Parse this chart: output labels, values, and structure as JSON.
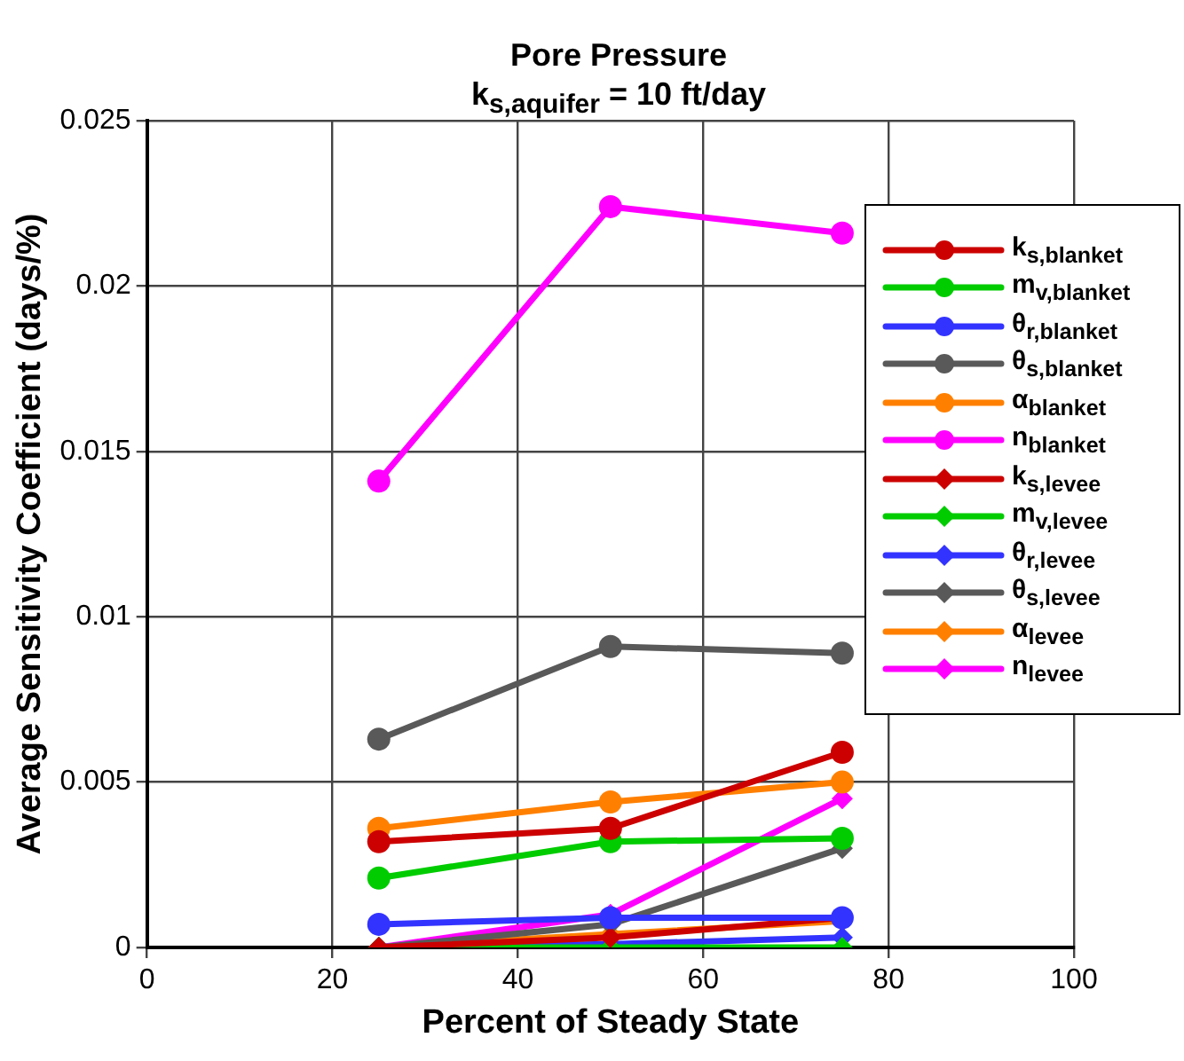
{
  "chart_data": {
    "type": "line",
    "title": "Pore Pressure",
    "subtitle": "k$_{s,aquifer}$ = 10 ft/day",
    "xlabel": "Percent of Steady State",
    "ylabel": "Average Sensitivity Coefficient (days/%)",
    "x": [
      25,
      50,
      75
    ],
    "xlim": [
      0,
      100
    ],
    "xticks": [
      0,
      20,
      40,
      60,
      80,
      100
    ],
    "ylim": [
      0,
      0.025
    ],
    "yticks": [
      0,
      0.005,
      0.01,
      0.015,
      0.02,
      0.025
    ],
    "grid": true,
    "legend": "right",
    "line_style": "solid",
    "series": [
      {
        "name": "k$_{s,blanket}$",
        "color": "#cc0000",
        "marker": "circle",
        "values": [
          0.0032,
          0.0036,
          0.0059
        ]
      },
      {
        "name": "m$_{v,blanket}$",
        "color": "#00cc00",
        "marker": "circle",
        "values": [
          0.0021,
          0.0032,
          0.0033
        ]
      },
      {
        "name": "θ$_{r,blanket}$",
        "color": "#3333ff",
        "marker": "circle",
        "values": [
          0.0007,
          0.0009,
          0.0009
        ]
      },
      {
        "name": "θ$_{s,blanket}$",
        "color": "#595959",
        "marker": "circle",
        "values": [
          0.0063,
          0.0091,
          0.0089
        ]
      },
      {
        "name": "α$_{blanket}$",
        "color": "#ff8000",
        "marker": "circle",
        "values": [
          0.0036,
          0.0044,
          0.005
        ]
      },
      {
        "name": "n$_{blanket}$",
        "color": "#ff00ff",
        "marker": "circle",
        "values": [
          0.0141,
          0.0224,
          0.0216
        ]
      },
      {
        "name": "k$_{s,levee}$",
        "color": "#cc0000",
        "marker": "diamond",
        "values": [
          0,
          0.0003,
          0.0009
        ]
      },
      {
        "name": "m$_{v,levee}$",
        "color": "#00cc00",
        "marker": "diamond",
        "values": [
          0,
          0,
          0
        ]
      },
      {
        "name": "θ$_{r,levee}$",
        "color": "#3333ff",
        "marker": "diamond",
        "values": [
          0,
          0.0001,
          0.0003
        ]
      },
      {
        "name": "θ$_{s,levee}$",
        "color": "#595959",
        "marker": "diamond",
        "values": [
          0,
          0.0007,
          0.003
        ]
      },
      {
        "name": "α$_{levee}$",
        "color": "#ff8000",
        "marker": "diamond",
        "values": [
          0,
          0.0004,
          0.0008
        ]
      },
      {
        "name": "n$_{levee}$",
        "color": "#ff00ff",
        "marker": "diamond",
        "values": [
          0,
          0.001,
          0.0045
        ]
      }
    ]
  }
}
